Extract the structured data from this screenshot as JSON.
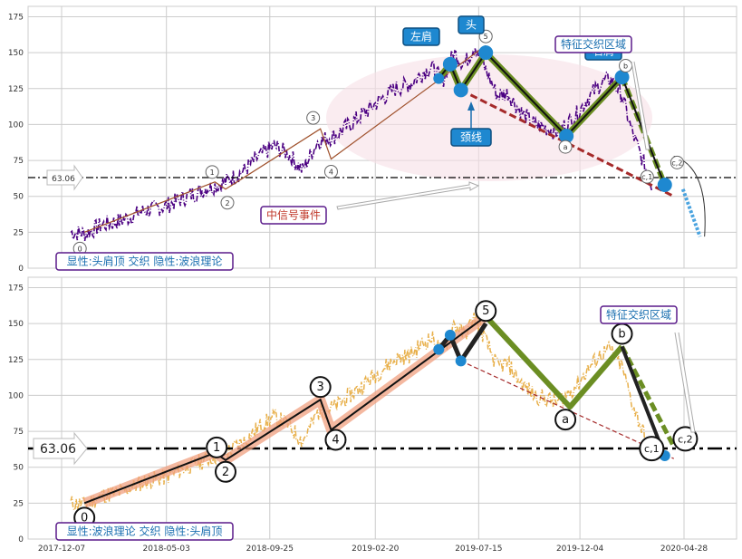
{
  "colors": {
    "grid": "#cccccc",
    "top_price": "#4b0082",
    "bottom_price": "#e8b04b",
    "wave_line": "#111111",
    "wave_highlight": "#f0a080",
    "pattern_green": "#6b8e23",
    "neckline": "#a52a2a",
    "marker_blue": "#1e88d0",
    "box_border": "#5a1a8a",
    "box_text": "#1a6fb0",
    "red_text": "#c0392b"
  },
  "chart_data": [
    {
      "type": "line",
      "panel": "top",
      "ylim": [
        0,
        180
      ],
      "yticks": [
        "0",
        "25",
        "50",
        "75",
        "100",
        "125",
        "150",
        "175"
      ],
      "support_level": 63.06,
      "support_label": "63.06",
      "series": [
        {
          "x": [
            "2017-12-20",
            "2018-01-10",
            "2018-02-01",
            "2018-03-01",
            "2018-04-01",
            "2018-05-01",
            "2018-06-01",
            "2018-07-01",
            "2018-07-25",
            "2018-08-20",
            "2018-09-10",
            "2018-10-01",
            "2018-10-20",
            "2018-11-10",
            "2018-12-01",
            "2018-12-25",
            "2019-01-15",
            "2019-02-05",
            "2019-03-01",
            "2019-03-20",
            "2019-04-10",
            "2019-04-25",
            "2019-05-10",
            "2019-05-25",
            "2019-06-10",
            "2019-06-25",
            "2019-07-10",
            "2019-07-25",
            "2019-08-10",
            "2019-08-25",
            "2019-09-10",
            "2019-10-01",
            "2019-10-15",
            "2019-11-01",
            "2019-11-15",
            "2019-12-01",
            "2019-12-15",
            "2020-01-01",
            "2020-01-15",
            "2020-02-01",
            "2020-02-15",
            "2020-03-01",
            "2020-03-15"
          ],
          "y": [
            25,
            24,
            30,
            33,
            40,
            43,
            50,
            56,
            60,
            68,
            78,
            85,
            80,
            68,
            88,
            92,
            100,
            108,
            118,
            125,
            128,
            135,
            140,
            130,
            150,
            142,
            155,
            138,
            120,
            122,
            110,
            100,
            98,
            95,
            100,
            108,
            118,
            128,
            132,
            120,
            95,
            75,
            55
          ]
        }
      ],
      "waves": [
        {
          "label": "0",
          "x": "2018-01-08",
          "y": 25
        },
        {
          "label": "1",
          "x": "2018-07-10",
          "y": 60
        },
        {
          "label": "2",
          "x": "2018-07-25",
          "y": 55
        },
        {
          "label": "3",
          "x": "2018-12-05",
          "y": 97
        },
        {
          "label": "4",
          "x": "2018-12-20",
          "y": 76
        },
        {
          "label": "5",
          "x": "2019-07-25",
          "y": 155
        },
        {
          "label": "a",
          "x": "2019-11-20",
          "y": 92
        },
        {
          "label": "b",
          "x": "2020-02-01",
          "y": 134
        },
        {
          "label": "c,1",
          "x": "2020-03-20",
          "y": 68
        },
        {
          "label": "c,2",
          "x": "2020-04-12",
          "y": 66
        }
      ],
      "pattern_points": [
        {
          "x": "2019-05-20",
          "y": 132
        },
        {
          "x": "2019-06-05",
          "y": 142
        },
        {
          "x": "2019-06-20",
          "y": 124
        },
        {
          "x": "2019-07-25",
          "y": 150
        },
        {
          "x": "2019-11-15",
          "y": 92
        },
        {
          "x": "2020-02-01",
          "y": 133
        },
        {
          "x": "2020-04-01",
          "y": 58
        }
      ],
      "annotations": {
        "left_shoulder": "左肩",
        "head": "头",
        "right_shoulder": "右肩",
        "neckline": "颈线",
        "feature_zone": "特征交织区域",
        "mid_signal": "中信号事件",
        "caption": "显性:头肩顶 交织 隐性:波浪理论"
      }
    },
    {
      "type": "line",
      "panel": "bottom",
      "ylim": [
        0,
        180
      ],
      "yticks": [
        "0",
        "25",
        "50",
        "75",
        "100",
        "125",
        "150",
        "175"
      ],
      "xticks": [
        "2017-12-07",
        "2018-05-03",
        "2018-09-25",
        "2019-02-20",
        "2019-07-15",
        "2019-12-04",
        "2020-04-28"
      ],
      "support_level": 63.06,
      "support_label": "63.06",
      "waves": [
        {
          "label": "0",
          "x": "2018-01-08",
          "y": 25
        },
        {
          "label": "1",
          "x": "2018-07-10",
          "y": 60
        },
        {
          "label": "2",
          "x": "2018-07-25",
          "y": 55
        },
        {
          "label": "3",
          "x": "2018-12-05",
          "y": 97
        },
        {
          "label": "4",
          "x": "2018-12-20",
          "y": 76
        },
        {
          "label": "5",
          "x": "2019-07-25",
          "y": 155
        },
        {
          "label": "a",
          "x": "2019-11-20",
          "y": 92
        },
        {
          "label": "b",
          "x": "2020-02-01",
          "y": 134
        },
        {
          "label": "c,1",
          "x": "2020-03-20",
          "y": 68
        },
        {
          "label": "c,2",
          "x": "2020-04-12",
          "y": 66
        }
      ],
      "annotations": {
        "feature_zone": "特征交织区域",
        "caption": "显性:波浪理论 交织 隐性:头肩顶"
      }
    }
  ]
}
